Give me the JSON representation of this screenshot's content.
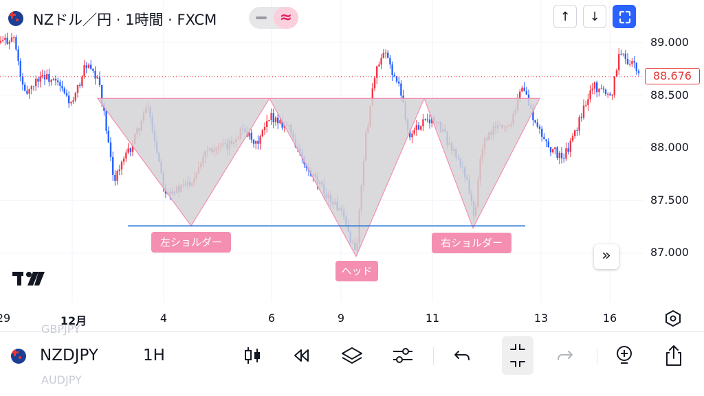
{
  "header": {
    "title": "NZドル／円 · 1時間 · FXCM",
    "toggle_wave_symbol": "≈",
    "up_button": "↑",
    "down_button": "↓"
  },
  "last_price": "88.676",
  "scroll_button": "»",
  "bottom_bar": {
    "symbol": "NZDJPY",
    "interval": "1H",
    "ghost_above": "GBPJPY",
    "ghost_below": "AUDJPY"
  },
  "colors": {
    "up": "#f23645",
    "down": "#2962ff",
    "fill": "#d3d3d6",
    "outline": "#f48fb1",
    "neckline": "#1e6fd9",
    "resistance": "#f48fb1"
  },
  "chart_data": {
    "type": "candlestick",
    "title": "NZドル／円 · 1時間 · FXCM",
    "y_axis": {
      "ticks": [
        "89.000",
        "88.500",
        "88.000",
        "87.500",
        "87.000"
      ],
      "range": [
        86.55,
        89.25
      ]
    },
    "x_axis": {
      "ticks": [
        "29",
        "12月",
        "4",
        "6",
        "9",
        "11",
        "13",
        "16"
      ]
    },
    "last_price": 88.676,
    "price_path": [
      [
        0,
        89.0
      ],
      [
        20,
        89.05
      ],
      [
        35,
        88.5
      ],
      [
        60,
        88.7
      ],
      [
        85,
        88.6
      ],
      [
        105,
        88.4
      ],
      [
        125,
        88.8
      ],
      [
        145,
        88.6
      ],
      [
        165,
        87.7
      ],
      [
        190,
        88.0
      ],
      [
        215,
        88.4
      ],
      [
        240,
        87.6
      ],
      [
        260,
        87.6
      ],
      [
        280,
        87.7
      ],
      [
        300,
        88.0
      ],
      [
        330,
        88.0
      ],
      [
        355,
        88.2
      ],
      [
        370,
        88.0
      ],
      [
        395,
        88.3
      ],
      [
        420,
        88.2
      ],
      [
        445,
        87.8
      ],
      [
        470,
        87.6
      ],
      [
        495,
        87.4
      ],
      [
        512,
        87.1
      ],
      [
        518,
        87.0
      ],
      [
        530,
        88.0
      ],
      [
        545,
        88.7
      ],
      [
        560,
        88.9
      ],
      [
        585,
        88.5
      ],
      [
        595,
        88.1
      ],
      [
        620,
        88.3
      ],
      [
        640,
        88.2
      ],
      [
        665,
        87.9
      ],
      [
        680,
        87.7
      ],
      [
        690,
        87.3
      ],
      [
        700,
        88.0
      ],
      [
        720,
        88.2
      ],
      [
        740,
        88.2
      ],
      [
        760,
        88.6
      ],
      [
        780,
        88.2
      ],
      [
        800,
        88.0
      ],
      [
        820,
        87.9
      ],
      [
        840,
        88.2
      ],
      [
        860,
        88.6
      ],
      [
        890,
        88.5
      ],
      [
        900,
        88.9
      ],
      [
        920,
        88.8
      ],
      [
        930,
        88.676
      ]
    ],
    "pattern": {
      "name": "Inverse Head and Shoulders",
      "labels": [
        "左ショルダー",
        "ヘッド",
        "右ショルダー"
      ],
      "resistance_level": 88.47,
      "neckline_level": 87.26,
      "left_shoulder": {
        "start_x": 142,
        "bottom": [
          278,
          87.26
        ],
        "end_x": 392
      },
      "head": {
        "start_x": 392,
        "bottom": [
          518,
          86.97
        ],
        "end_x": 617
      },
      "right_shoulder": {
        "start_x": 617,
        "bottom": [
          688,
          87.24
        ],
        "end_x": 785
      }
    }
  }
}
